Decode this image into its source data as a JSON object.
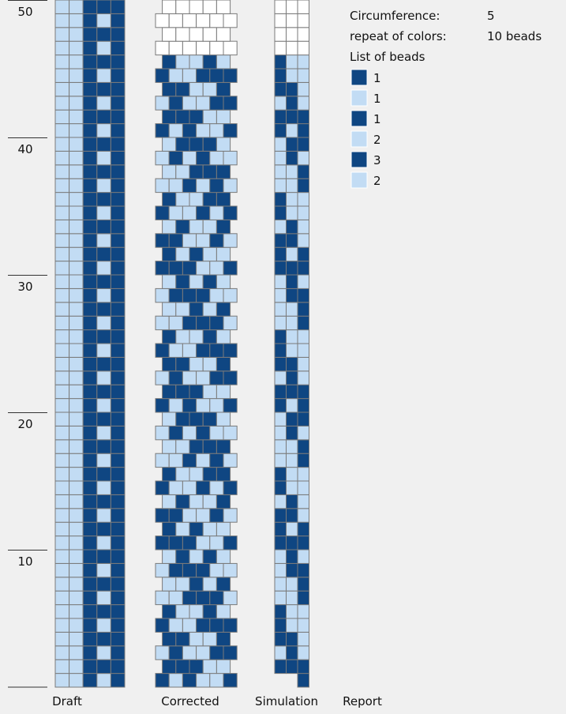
{
  "ruler": {
    "ticks": [
      50,
      40,
      30,
      20,
      10
    ]
  },
  "info": {
    "circumference_label": "Circumference:",
    "circumference": "5",
    "repeat_label": "repeat of colors:",
    "repeat": "10 beads",
    "list_label": "List of beads",
    "beads": [
      {
        "color": "#0f4682",
        "count": 1
      },
      {
        "color": "#c2dcf4",
        "count": 1
      },
      {
        "color": "#0f4682",
        "count": 1
      },
      {
        "color": "#c2dcf4",
        "count": 2
      },
      {
        "color": "#0f4682",
        "count": 3
      },
      {
        "color": "#c2dcf4",
        "count": 2
      }
    ]
  },
  "tabs": [
    "Draft",
    "Corrected",
    "Simulation",
    "Report"
  ]
}
